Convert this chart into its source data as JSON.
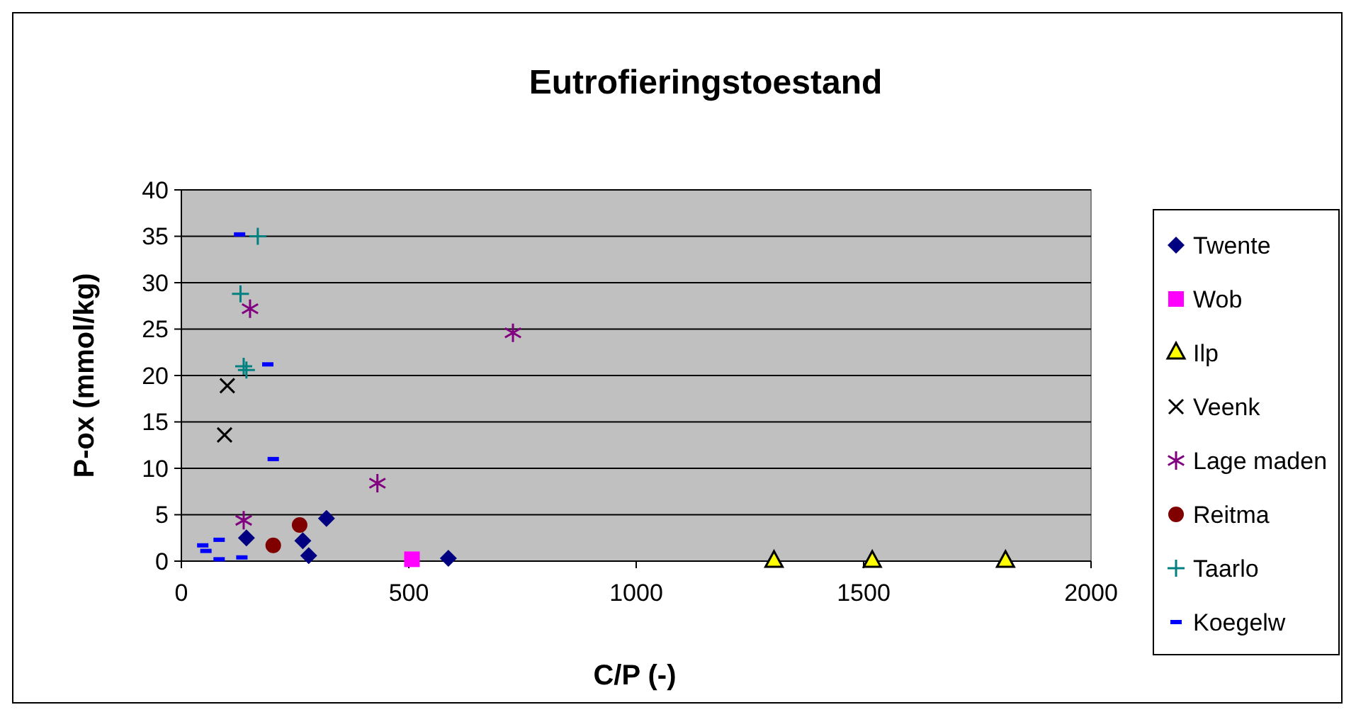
{
  "chart_data": {
    "type": "scatter",
    "title": "Eutrofieringstoestand",
    "xlabel": "C/P (-)",
    "ylabel": "P-ox (mmol/kg)",
    "xlim": [
      0,
      2000
    ],
    "xticks": [
      0,
      500,
      1000,
      1500,
      2000
    ],
    "ylim": [
      0,
      40
    ],
    "yticks": [
      0,
      5,
      10,
      15,
      20,
      25,
      30,
      35,
      40
    ],
    "grid": "y",
    "legend": "right",
    "series": [
      {
        "name": "Twente",
        "color": "#000080",
        "marker": "diamond",
        "x": [
          143,
          267,
          280,
          319,
          587
        ],
        "values": [
          2.5,
          2.2,
          0.6,
          4.6,
          0.3
        ]
      },
      {
        "name": "Wob",
        "color": "#ff00ff",
        "marker": "square",
        "x": [
          507
        ],
        "values": [
          0.2
        ]
      },
      {
        "name": "Ilp",
        "color": "#ffff00",
        "marker": "triangle",
        "x": [
          1303,
          1519,
          1812
        ],
        "values": [
          0,
          0,
          0
        ]
      },
      {
        "name": "Veenk",
        "color": "#000000",
        "marker": "x",
        "x": [
          101,
          95
        ],
        "values": [
          18.9,
          13.6
        ]
      },
      {
        "name": "Lage maden",
        "color": "#800080",
        "marker": "cross",
        "x": [
          151,
          137,
          431,
          729
        ],
        "values": [
          27.2,
          4.4,
          8.4,
          24.6
        ]
      },
      {
        "name": "Reitma",
        "color": "#800000",
        "marker": "circle",
        "x": [
          202,
          260
        ],
        "values": [
          1.7,
          3.9
        ]
      },
      {
        "name": "Taarlo",
        "color": "#008080",
        "marker": "plus",
        "x": [
          168,
          130,
          137,
          143
        ],
        "values": [
          35,
          28.8,
          21,
          20.6
        ]
      },
      {
        "name": "Koegelw",
        "color": "#0000ff",
        "x": [
          128,
          190,
          202,
          47,
          54,
          83,
          83,
          133
        ],
        "values": [
          35.2,
          21.2,
          11,
          1.7,
          1.1,
          2.3,
          0.2,
          0.4
        ]
      }
    ]
  }
}
